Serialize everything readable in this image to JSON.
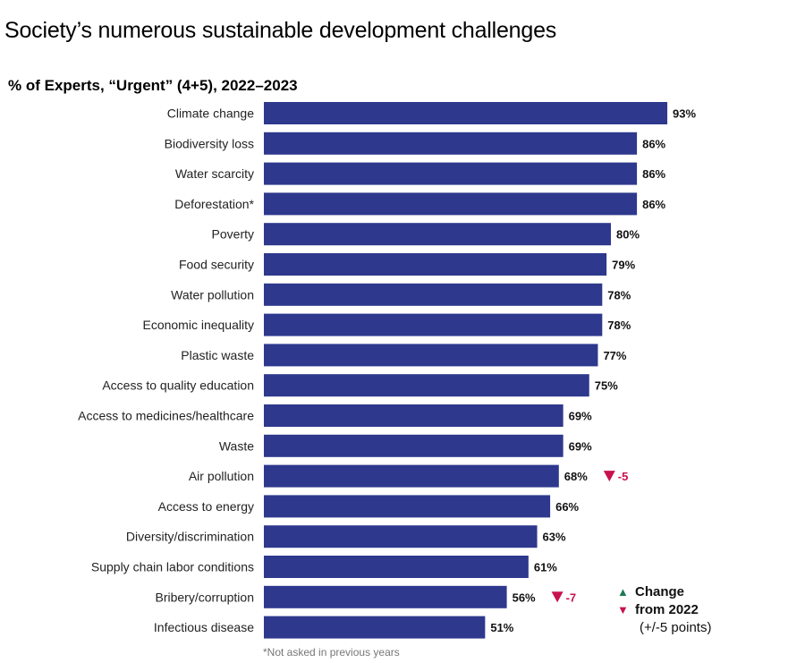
{
  "title": "Society’s numerous sustainable development challenges",
  "subtitle": "% of Experts, “Urgent” (4+5), 2022–2023",
  "footnote": "*Not asked in previous years",
  "colors": {
    "bar": "#2e388d",
    "up": "#1f7a54",
    "down": "#c8114f"
  },
  "chart_data": {
    "type": "bar",
    "orientation": "horizontal",
    "title": "% of Experts, “Urgent” (4+5), 2022–2023",
    "xlim": [
      0,
      100
    ],
    "value_suffix": "%",
    "categories": [
      "Climate change",
      "Biodiversity loss",
      "Water scarcity",
      "Deforestation*",
      "Poverty",
      "Food security",
      "Water pollution",
      "Economic inequality",
      "Plastic waste",
      "Access to quality education",
      "Access to medicines/healthcare",
      "Waste",
      "Air pollution",
      "Access to energy",
      "Diversity/discrimination",
      "Supply chain labor conditions",
      "Bribery/corruption",
      "Infectious disease"
    ],
    "values": [
      93,
      86,
      86,
      86,
      80,
      79,
      78,
      78,
      77,
      75,
      69,
      69,
      68,
      66,
      63,
      61,
      56,
      51
    ],
    "value_labels": [
      "93%",
      "86%",
      "86%",
      "86%",
      "80%",
      "79%",
      "78%",
      "78%",
      "77%",
      "75%",
      "69%",
      "69%",
      "68%",
      "66%",
      "63%",
      "61%",
      "56%",
      "51%"
    ],
    "changes": [
      {
        "category": "Air pollution",
        "direction": "down",
        "label": "-5"
      },
      {
        "category": "Bribery/corruption",
        "direction": "down",
        "label": "-7"
      }
    ]
  },
  "legend": {
    "up_symbol": "▲",
    "down_symbol": "▼",
    "line1": "Change",
    "line2": "from 2022",
    "line3": "(+/-5 points)"
  }
}
